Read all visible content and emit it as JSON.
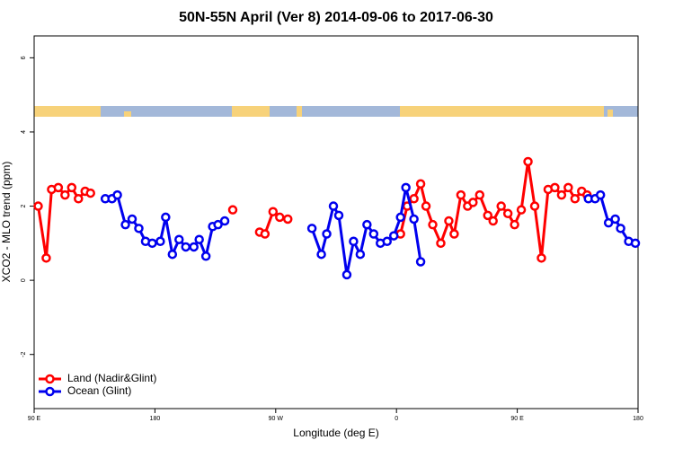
{
  "chart_data": {
    "type": "line",
    "title": "50N-55N April (Ver 8)   2014-09-06 to 2017-06-30",
    "xlabel": "Longitude (deg E)",
    "ylabel": "XCO2 - MLO trend (ppm)",
    "xlim": [
      90,
      540
    ],
    "xticks": [
      {
        "value": 90,
        "label": "90 E"
      },
      180,
      {
        "value": 270,
        "label": "90 W"
      },
      {
        "value": 360,
        "label": "0"
      },
      {
        "value": 450,
        "label": "90 E"
      },
      {
        "value": 540,
        "label": "180"
      }
    ],
    "ylim": [
      -3.46,
      6.59
    ],
    "yticks": [
      -2,
      0,
      2,
      4,
      6
    ],
    "legend": "bottom-left",
    "series": [
      {
        "name": "Land (Nadir&Glint)",
        "color": "#ff0000",
        "x": [
          93,
          99,
          103,
          108,
          113,
          118,
          123,
          128,
          132,
          null,
          238,
          null,
          258,
          262,
          268,
          273,
          279,
          null,
          363,
          368,
          373,
          378,
          382,
          387,
          393,
          399,
          403,
          408,
          413,
          417,
          422,
          428,
          432,
          438,
          443,
          448,
          453,
          458,
          463,
          468,
          473,
          478,
          483,
          488,
          493,
          498,
          502
        ],
        "values": [
          2.0,
          0.6,
          2.45,
          2.5,
          2.3,
          2.5,
          2.2,
          2.4,
          2.35,
          null,
          1.9,
          null,
          1.3,
          1.25,
          1.85,
          1.7,
          1.65,
          null,
          1.25,
          2.0,
          2.2,
          2.6,
          2.0,
          1.5,
          1.0,
          1.6,
          1.25,
          2.3,
          2.0,
          2.1,
          2.3,
          1.75,
          1.6,
          2.0,
          1.8,
          1.5,
          1.9,
          3.2,
          2.0,
          0.6,
          2.45,
          2.5,
          2.3,
          2.5,
          2.2,
          2.4,
          2.3
        ]
      },
      {
        "name": "Ocean (Glint)",
        "color": "#0000ee",
        "x": [
          143,
          148,
          152,
          158,
          163,
          168,
          173,
          178,
          184,
          188,
          193,
          198,
          203,
          209,
          213,
          218,
          223,
          227,
          232,
          null,
          297,
          304,
          308,
          313,
          317,
          323,
          328,
          333,
          338,
          343,
          348,
          353,
          358,
          363,
          367,
          373,
          378,
          null,
          503,
          508,
          512,
          518,
          523,
          527,
          533,
          538
        ],
        "values": [
          2.2,
          2.2,
          2.3,
          1.5,
          1.65,
          1.4,
          1.05,
          1.0,
          1.05,
          1.7,
          0.7,
          1.1,
          0.9,
          0.9,
          1.1,
          0.65,
          1.45,
          1.5,
          1.6,
          null,
          1.4,
          0.7,
          1.25,
          2.0,
          1.75,
          0.15,
          1.05,
          0.7,
          1.5,
          1.25,
          1.0,
          1.05,
          1.2,
          1.7,
          2.5,
          1.65,
          0.5,
          null,
          2.2,
          2.2,
          2.3,
          1.55,
          1.65,
          1.4,
          1.05,
          1.0
        ]
      }
    ]
  }
}
